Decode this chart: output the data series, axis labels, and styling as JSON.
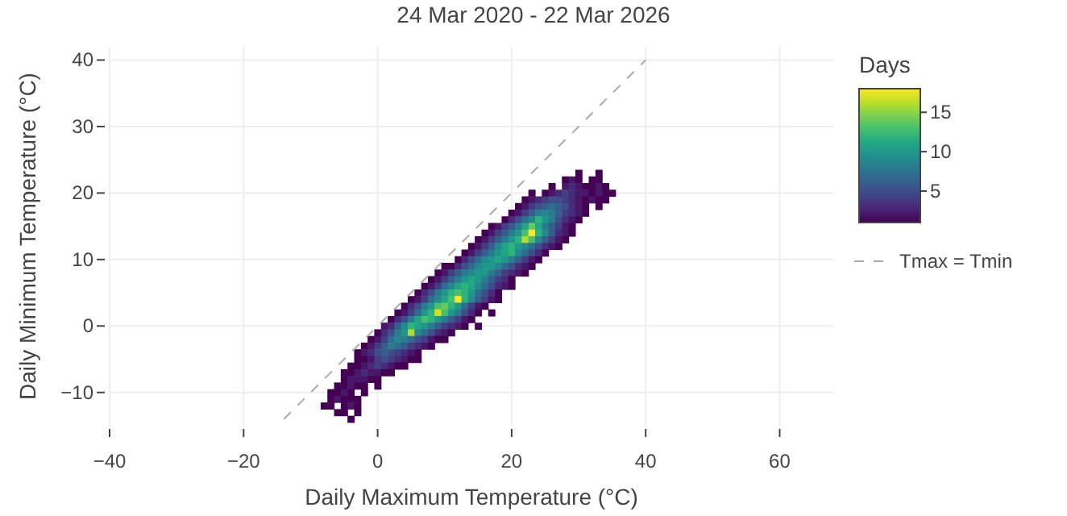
{
  "chart_data": {
    "type": "heatmap",
    "title": "24 Mar 2020 - 22 Mar 2026",
    "xlabel": "Daily Maximum Temperature (°C)",
    "ylabel": "Daily Minimum Temperature (°C)",
    "clabel": "Days",
    "x": [
      -8,
      -7,
      -6,
      -5,
      -4,
      -3,
      -2,
      -1,
      0,
      1,
      2,
      3,
      4,
      5,
      6,
      7,
      8,
      9,
      10,
      11,
      12,
      13,
      14,
      15,
      16,
      17,
      18,
      19,
      20,
      21,
      22,
      23,
      24,
      25,
      26,
      27,
      28,
      29,
      30,
      31,
      32,
      33,
      34,
      35
    ],
    "y": [
      23,
      22,
      21,
      20,
      19,
      18,
      17,
      16,
      15,
      14,
      13,
      12,
      11,
      10,
      9,
      8,
      7,
      6,
      5,
      4,
      3,
      2,
      1,
      0,
      -1,
      -2,
      -3,
      -4,
      -5,
      -6,
      -7,
      -8,
      -9,
      -10,
      -11,
      -12,
      -13,
      -14
    ],
    "cells": [
      [
        null,
        null,
        null,
        null,
        null,
        null,
        null,
        null,
        null,
        null,
        null,
        null,
        null,
        null,
        null,
        null,
        null,
        null,
        null,
        null,
        null,
        null,
        null,
        null,
        null,
        null,
        null,
        null,
        null,
        null,
        null,
        null,
        null,
        null,
        null,
        null,
        null,
        null,
        1,
        null,
        null,
        1,
        null,
        null
      ],
      [
        null,
        null,
        null,
        null,
        null,
        null,
        null,
        null,
        null,
        null,
        null,
        null,
        null,
        null,
        null,
        null,
        null,
        null,
        null,
        null,
        null,
        null,
        null,
        null,
        null,
        null,
        null,
        null,
        null,
        null,
        null,
        null,
        null,
        null,
        null,
        null,
        1,
        2,
        1,
        null,
        1,
        1,
        null,
        null
      ],
      [
        null,
        null,
        null,
        null,
        null,
        null,
        null,
        null,
        null,
        null,
        null,
        null,
        null,
        null,
        null,
        null,
        null,
        null,
        null,
        null,
        null,
        null,
        null,
        null,
        null,
        null,
        null,
        null,
        null,
        null,
        null,
        null,
        null,
        null,
        1,
        null,
        2,
        3,
        2,
        1,
        1,
        2,
        1,
        null
      ],
      [
        null,
        null,
        null,
        null,
        null,
        null,
        null,
        null,
        null,
        null,
        null,
        null,
        null,
        null,
        null,
        null,
        null,
        null,
        null,
        null,
        null,
        null,
        null,
        null,
        null,
        null,
        null,
        null,
        null,
        null,
        null,
        1,
        null,
        1,
        2,
        3,
        4,
        3,
        2,
        2,
        1,
        2,
        1,
        1
      ],
      [
        null,
        null,
        null,
        null,
        null,
        null,
        null,
        null,
        null,
        null,
        null,
        null,
        null,
        null,
        null,
        null,
        null,
        null,
        null,
        null,
        null,
        null,
        null,
        null,
        null,
        null,
        null,
        null,
        null,
        null,
        1,
        2,
        3,
        4,
        5,
        5,
        4,
        3,
        2,
        1,
        2,
        1,
        1,
        null
      ],
      [
        null,
        null,
        null,
        null,
        null,
        null,
        null,
        null,
        null,
        null,
        null,
        null,
        null,
        null,
        null,
        null,
        null,
        null,
        null,
        null,
        null,
        null,
        null,
        null,
        null,
        null,
        null,
        null,
        null,
        1,
        2,
        4,
        5,
        6,
        7,
        6,
        5,
        3,
        2,
        1,
        null,
        1,
        null,
        null
      ],
      [
        null,
        null,
        null,
        null,
        null,
        null,
        null,
        null,
        null,
        null,
        null,
        null,
        null,
        null,
        null,
        null,
        null,
        null,
        null,
        null,
        null,
        null,
        null,
        null,
        null,
        null,
        null,
        null,
        1,
        2,
        4,
        6,
        8,
        9,
        8,
        6,
        4,
        3,
        2,
        1,
        null,
        null,
        null,
        null
      ],
      [
        null,
        null,
        null,
        null,
        null,
        null,
        null,
        null,
        null,
        null,
        null,
        null,
        null,
        null,
        null,
        null,
        null,
        null,
        null,
        null,
        null,
        null,
        null,
        null,
        null,
        null,
        null,
        1,
        3,
        5,
        7,
        9,
        12,
        10,
        8,
        5,
        3,
        2,
        1,
        null,
        null,
        null,
        null,
        null
      ],
      [
        null,
        null,
        null,
        null,
        null,
        null,
        null,
        null,
        null,
        null,
        null,
        null,
        null,
        null,
        null,
        null,
        null,
        null,
        null,
        null,
        null,
        null,
        null,
        null,
        null,
        1,
        2,
        4,
        6,
        8,
        11,
        14,
        11,
        8,
        6,
        4,
        2,
        1,
        null,
        null,
        null,
        null,
        null,
        null
      ],
      [
        null,
        null,
        null,
        null,
        null,
        null,
        null,
        null,
        null,
        null,
        null,
        null,
        null,
        null,
        null,
        null,
        null,
        null,
        null,
        null,
        null,
        null,
        null,
        null,
        1,
        2,
        4,
        6,
        8,
        10,
        13,
        18,
        12,
        9,
        6,
        3,
        2,
        1,
        null,
        null,
        null,
        null,
        null,
        null
      ],
      [
        null,
        null,
        null,
        null,
        null,
        null,
        null,
        null,
        null,
        null,
        null,
        null,
        null,
        null,
        null,
        null,
        null,
        null,
        null,
        null,
        null,
        null,
        null,
        1,
        2,
        4,
        6,
        8,
        10,
        12,
        16,
        13,
        9,
        6,
        4,
        2,
        1,
        null,
        null,
        null,
        null,
        null,
        null,
        null
      ],
      [
        null,
        null,
        null,
        null,
        null,
        null,
        null,
        null,
        null,
        null,
        null,
        null,
        null,
        null,
        null,
        null,
        null,
        null,
        null,
        null,
        null,
        null,
        1,
        2,
        4,
        6,
        9,
        11,
        12,
        10,
        9,
        7,
        5,
        3,
        2,
        1,
        null,
        null,
        null,
        null,
        null,
        null,
        null,
        null
      ],
      [
        null,
        null,
        null,
        null,
        null,
        null,
        null,
        null,
        null,
        null,
        null,
        null,
        null,
        null,
        null,
        null,
        null,
        null,
        null,
        null,
        null,
        1,
        2,
        4,
        6,
        8,
        10,
        11,
        12,
        9,
        7,
        5,
        3,
        1,
        null,
        null,
        null,
        null,
        null,
        null,
        null,
        null,
        null,
        null
      ],
      [
        null,
        null,
        null,
        null,
        null,
        null,
        null,
        null,
        null,
        null,
        null,
        null,
        null,
        null,
        null,
        null,
        null,
        null,
        null,
        null,
        1,
        3,
        5,
        7,
        9,
        10,
        11,
        10,
        8,
        6,
        4,
        2,
        1,
        null,
        null,
        null,
        null,
        null,
        null,
        null,
        null,
        null,
        null,
        null
      ],
      [
        null,
        null,
        null,
        null,
        null,
        null,
        null,
        null,
        null,
        null,
        null,
        null,
        null,
        null,
        null,
        null,
        null,
        null,
        1,
        1,
        3,
        5,
        7,
        9,
        10,
        10,
        9,
        7,
        5,
        3,
        2,
        1,
        null,
        null,
        null,
        null,
        null,
        null,
        null,
        null,
        null,
        null,
        null,
        null
      ],
      [
        null,
        null,
        null,
        null,
        null,
        null,
        null,
        null,
        null,
        null,
        null,
        null,
        null,
        null,
        null,
        null,
        null,
        1,
        2,
        4,
        6,
        8,
        9,
        10,
        10,
        8,
        6,
        4,
        3,
        2,
        1,
        null,
        null,
        null,
        null,
        null,
        null,
        null,
        null,
        null,
        null,
        null,
        null,
        null
      ],
      [
        null,
        null,
        null,
        null,
        null,
        null,
        null,
        null,
        null,
        null,
        null,
        null,
        null,
        null,
        null,
        null,
        1,
        2,
        4,
        6,
        8,
        10,
        11,
        10,
        8,
        6,
        4,
        3,
        1,
        null,
        null,
        null,
        null,
        null,
        null,
        null,
        null,
        null,
        null,
        null,
        null,
        null,
        null,
        null
      ],
      [
        null,
        null,
        null,
        null,
        null,
        null,
        null,
        null,
        null,
        null,
        null,
        null,
        null,
        null,
        null,
        1,
        2,
        4,
        7,
        9,
        11,
        12,
        11,
        9,
        7,
        5,
        3,
        2,
        1,
        null,
        null,
        null,
        null,
        null,
        null,
        null,
        null,
        null,
        null,
        null,
        null,
        null,
        null,
        null
      ],
      [
        null,
        null,
        null,
        null,
        null,
        null,
        null,
        null,
        null,
        null,
        null,
        null,
        null,
        null,
        1,
        3,
        5,
        8,
        10,
        12,
        13,
        12,
        10,
        7,
        5,
        3,
        1,
        null,
        null,
        null,
        null,
        null,
        null,
        null,
        null,
        null,
        null,
        null,
        null,
        null,
        null,
        null,
        null,
        null
      ],
      [
        null,
        null,
        null,
        null,
        null,
        null,
        null,
        null,
        null,
        null,
        null,
        null,
        null,
        1,
        2,
        4,
        7,
        9,
        11,
        13,
        18,
        12,
        9,
        6,
        4,
        2,
        1,
        null,
        null,
        null,
        null,
        null,
        null,
        null,
        null,
        null,
        null,
        null,
        null,
        null,
        null,
        null,
        null,
        null
      ],
      [
        null,
        null,
        null,
        null,
        null,
        null,
        null,
        null,
        null,
        null,
        null,
        null,
        1,
        3,
        5,
        8,
        10,
        13,
        14,
        12,
        10,
        7,
        4,
        2,
        1,
        null,
        null,
        null,
        null,
        null,
        null,
        null,
        null,
        null,
        null,
        null,
        null,
        null,
        null,
        null,
        null,
        null,
        null,
        null
      ],
      [
        null,
        null,
        null,
        null,
        null,
        null,
        null,
        null,
        null,
        null,
        null,
        1,
        2,
        4,
        7,
        10,
        12,
        17,
        13,
        10,
        8,
        5,
        3,
        1,
        null,
        1,
        null,
        null,
        null,
        null,
        null,
        null,
        null,
        null,
        null,
        null,
        null,
        null,
        null,
        null,
        null,
        null,
        null,
        null
      ],
      [
        null,
        null,
        null,
        null,
        null,
        null,
        null,
        null,
        null,
        null,
        1,
        3,
        5,
        8,
        11,
        13,
        12,
        10,
        8,
        6,
        4,
        2,
        1,
        null,
        null,
        null,
        null,
        null,
        null,
        null,
        null,
        null,
        null,
        null,
        null,
        null,
        null,
        null,
        null,
        null,
        null,
        null,
        null,
        null
      ],
      [
        null,
        null,
        null,
        null,
        null,
        null,
        null,
        null,
        null,
        2,
        3,
        6,
        9,
        12,
        11,
        10,
        8,
        6,
        4,
        3,
        2,
        1,
        null,
        1,
        null,
        null,
        null,
        null,
        null,
        null,
        null,
        null,
        null,
        null,
        null,
        null,
        null,
        null,
        null,
        null,
        null,
        null,
        null,
        null
      ],
      [
        null,
        null,
        null,
        null,
        null,
        null,
        null,
        null,
        1,
        3,
        5,
        8,
        10,
        16,
        9,
        7,
        5,
        3,
        2,
        1,
        null,
        null,
        null,
        null,
        null,
        null,
        null,
        null,
        null,
        null,
        null,
        null,
        null,
        null,
        null,
        null,
        null,
        null,
        null,
        null,
        null,
        null,
        null,
        null
      ],
      [
        null,
        null,
        null,
        null,
        null,
        null,
        null,
        1,
        2,
        4,
        7,
        9,
        8,
        7,
        5,
        4,
        2,
        1,
        1,
        null,
        null,
        null,
        null,
        null,
        null,
        null,
        null,
        null,
        null,
        null,
        null,
        null,
        null,
        null,
        null,
        null,
        null,
        null,
        null,
        null,
        null,
        null,
        null,
        null
      ],
      [
        null,
        null,
        null,
        null,
        null,
        null,
        1,
        2,
        4,
        6,
        8,
        7,
        6,
        4,
        3,
        2,
        1,
        null,
        null,
        null,
        null,
        null,
        null,
        null,
        null,
        null,
        null,
        null,
        null,
        null,
        null,
        null,
        null,
        null,
        null,
        null,
        null,
        null,
        null,
        null,
        null,
        null,
        null,
        null
      ],
      [
        null,
        null,
        null,
        null,
        null,
        1,
        2,
        3,
        5,
        6,
        5,
        4,
        3,
        2,
        1,
        null,
        null,
        null,
        null,
        null,
        null,
        null,
        null,
        null,
        null,
        null,
        null,
        null,
        null,
        null,
        null,
        null,
        null,
        null,
        null,
        null,
        null,
        null,
        null,
        null,
        null,
        null,
        null,
        null
      ],
      [
        null,
        null,
        null,
        null,
        null,
        1,
        1,
        2,
        4,
        5,
        4,
        3,
        2,
        1,
        1,
        null,
        null,
        null,
        null,
        null,
        null,
        null,
        null,
        null,
        null,
        null,
        null,
        null,
        null,
        null,
        null,
        null,
        null,
        null,
        null,
        null,
        null,
        null,
        null,
        null,
        null,
        null,
        null,
        null
      ],
      [
        null,
        null,
        null,
        null,
        1,
        1,
        2,
        3,
        4,
        3,
        2,
        1,
        1,
        null,
        null,
        null,
        null,
        null,
        null,
        null,
        null,
        null,
        null,
        null,
        null,
        null,
        null,
        null,
        null,
        null,
        null,
        null,
        null,
        null,
        null,
        null,
        null,
        null,
        null,
        null,
        null,
        null,
        null,
        null
      ],
      [
        null,
        null,
        null,
        1,
        1,
        2,
        3,
        2,
        2,
        1,
        1,
        null,
        null,
        null,
        null,
        null,
        null,
        null,
        null,
        null,
        null,
        null,
        null,
        null,
        null,
        null,
        null,
        null,
        null,
        null,
        null,
        null,
        null,
        null,
        null,
        null,
        null,
        null,
        null,
        null,
        null,
        null,
        null,
        null
      ],
      [
        null,
        null,
        null,
        1,
        2,
        2,
        2,
        1,
        1,
        null,
        null,
        null,
        null,
        null,
        null,
        null,
        null,
        null,
        null,
        null,
        null,
        null,
        null,
        null,
        null,
        null,
        null,
        null,
        null,
        null,
        null,
        null,
        null,
        null,
        null,
        null,
        null,
        null,
        null,
        null,
        null,
        null,
        null,
        null
      ],
      [
        null,
        null,
        1,
        1,
        2,
        1,
        1,
        null,
        1,
        null,
        null,
        null,
        null,
        null,
        null,
        null,
        null,
        null,
        null,
        null,
        null,
        null,
        null,
        null,
        null,
        null,
        null,
        null,
        null,
        null,
        null,
        null,
        null,
        null,
        null,
        null,
        null,
        null,
        null,
        null,
        null,
        null,
        null,
        null
      ],
      [
        null,
        1,
        1,
        2,
        1,
        null,
        1,
        null,
        null,
        null,
        null,
        null,
        null,
        null,
        null,
        null,
        null,
        null,
        null,
        null,
        null,
        null,
        null,
        null,
        null,
        null,
        null,
        null,
        null,
        null,
        null,
        null,
        null,
        null,
        null,
        null,
        null,
        null,
        null,
        null,
        null,
        null,
        null,
        null
      ],
      [
        null,
        1,
        2,
        1,
        1,
        1,
        null,
        null,
        null,
        null,
        null,
        null,
        null,
        null,
        null,
        null,
        null,
        null,
        null,
        null,
        null,
        null,
        null,
        null,
        null,
        null,
        null,
        null,
        null,
        null,
        null,
        null,
        null,
        null,
        null,
        null,
        null,
        null,
        null,
        null,
        null,
        null,
        null,
        null
      ],
      [
        1,
        1,
        null,
        1,
        2,
        1,
        null,
        null,
        null,
        null,
        null,
        null,
        null,
        null,
        null,
        null,
        null,
        null,
        null,
        null,
        null,
        null,
        null,
        null,
        null,
        null,
        null,
        null,
        null,
        null,
        null,
        null,
        null,
        null,
        null,
        null,
        null,
        null,
        null,
        null,
        null,
        null,
        null,
        null
      ],
      [
        null,
        null,
        1,
        1,
        null,
        1,
        null,
        null,
        null,
        null,
        null,
        null,
        null,
        null,
        null,
        null,
        null,
        null,
        null,
        null,
        null,
        null,
        null,
        null,
        null,
        null,
        null,
        null,
        null,
        null,
        null,
        null,
        null,
        null,
        null,
        null,
        null,
        null,
        null,
        null,
        null,
        null,
        null,
        null
      ],
      [
        null,
        null,
        null,
        null,
        1,
        null,
        null,
        null,
        null,
        null,
        null,
        null,
        null,
        null,
        null,
        null,
        null,
        null,
        null,
        null,
        null,
        null,
        null,
        null,
        null,
        null,
        null,
        null,
        null,
        null,
        null,
        null,
        null,
        null,
        null,
        null,
        null,
        null,
        null,
        null,
        null,
        null,
        null,
        null
      ]
    ],
    "clim": [
      1,
      18
    ],
    "cticks": [
      5,
      10,
      15
    ],
    "series": [
      {
        "type": "line",
        "name": "Tmax = Tmin",
        "color": "#aaaaaa",
        "line_style": "dashed",
        "x": [
          -14,
          40
        ],
        "values": [
          -14,
          40
        ]
      }
    ],
    "xlim": [
      -40,
      68
    ],
    "ylim": [
      -15,
      42
    ],
    "xticks": [
      {
        "value": -40,
        "label": "−40"
      },
      {
        "value": -20,
        "label": "−20"
      },
      0,
      20,
      40,
      60
    ],
    "yticks": [
      {
        "value": -10,
        "label": "−10"
      },
      0,
      10,
      20,
      30,
      40
    ],
    "grid": true,
    "legend": "right"
  }
}
